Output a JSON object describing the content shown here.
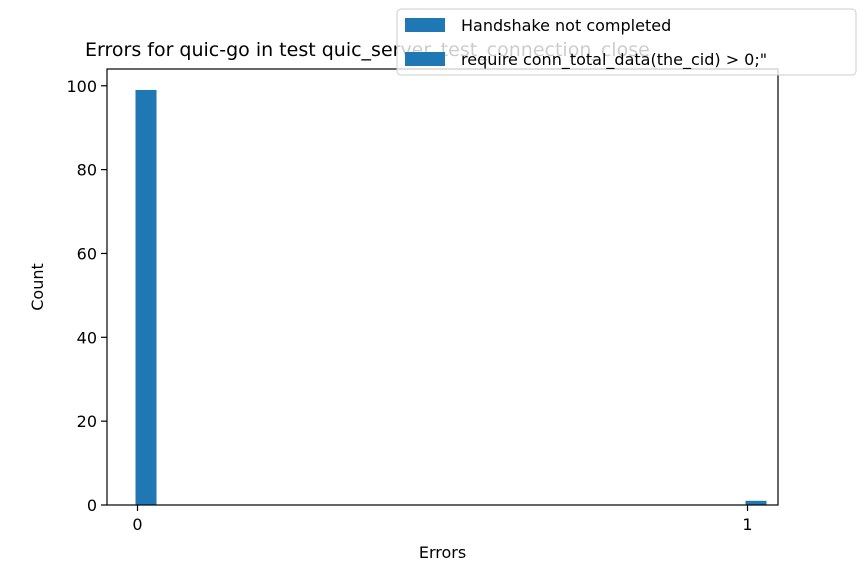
{
  "chart_data": {
    "type": "bar",
    "title": "Errors for quic-go in test quic_server_test_connection_close",
    "xlabel": "Errors",
    "ylabel": "Count",
    "x_ticks": [
      0,
      1
    ],
    "y_ticks": [
      0,
      20,
      40,
      60,
      80,
      100
    ],
    "xlim": [
      -0.05,
      1.05
    ],
    "ylim": [
      0,
      104
    ],
    "grid": false,
    "legend_position": "upper-right",
    "series": [
      {
        "name": "Handshake not completed",
        "color": "#1f77b4",
        "bars": [
          {
            "x": 0,
            "value": 99
          }
        ]
      },
      {
        "name": "require conn_total_data(the_cid) > 0;\"",
        "color": "#1f77b4",
        "bars": [
          {
            "x": 1,
            "value": 1
          }
        ]
      }
    ]
  }
}
